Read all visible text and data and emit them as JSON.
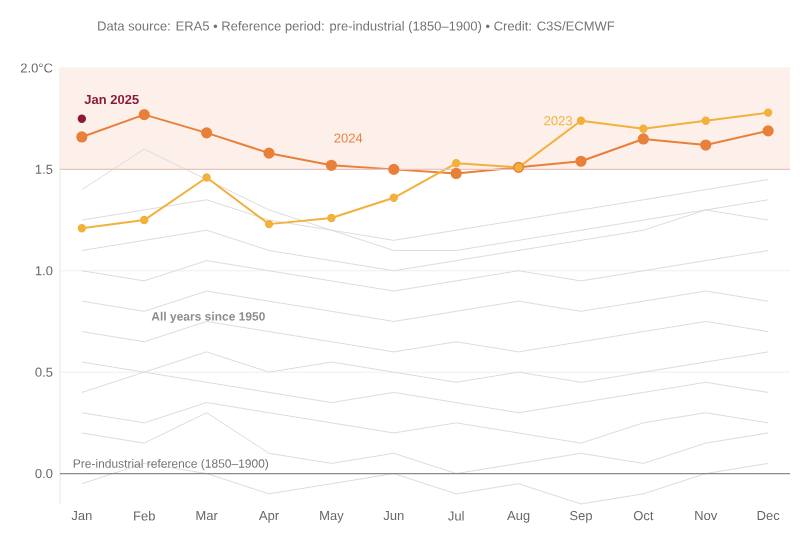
{
  "chart_data": {
    "type": "line",
    "subtitle": "Data source: ERA5 • Reference period: pre-industrial (1850–1900) • Credit: C3S/ECMWF",
    "categories": [
      "Jan",
      "Feb",
      "Mar",
      "Apr",
      "May",
      "Jun",
      "Jul",
      "Aug",
      "Sep",
      "Oct",
      "Nov",
      "Dec"
    ],
    "ylim": [
      -0.15,
      2.0
    ],
    "yticks": [
      {
        "value": 0,
        "label": "0.0"
      },
      {
        "value": 0.5,
        "label": "0.5"
      },
      {
        "value": 1,
        "label": "1.0"
      },
      {
        "value": 1.5,
        "label": "1.5"
      },
      {
        "value": 2,
        "label": "2.0°C"
      }
    ],
    "grid": "y",
    "series": [
      {
        "color": "#dcdcdc",
        "marker": "none",
        "values": [
          -0.05,
          0.05,
          0.0,
          -0.1,
          -0.05,
          0.0,
          -0.1,
          -0.05,
          -0.15,
          -0.1,
          0.0,
          0.05
        ]
      },
      {
        "color": "#dcdcdc",
        "marker": "none",
        "values": [
          0.2,
          0.15,
          0.3,
          0.1,
          0.05,
          0.1,
          0.0,
          0.05,
          0.1,
          0.05,
          0.15,
          0.2
        ]
      },
      {
        "color": "#dcdcdc",
        "marker": "none",
        "values": [
          0.3,
          0.25,
          0.35,
          0.3,
          0.25,
          0.2,
          0.25,
          0.2,
          0.15,
          0.25,
          0.3,
          0.25
        ]
      },
      {
        "color": "#dcdcdc",
        "marker": "none",
        "values": [
          0.4,
          0.5,
          0.45,
          0.4,
          0.35,
          0.4,
          0.35,
          0.3,
          0.35,
          0.4,
          0.45,
          0.4
        ]
      },
      {
        "color": "#dcdcdc",
        "marker": "none",
        "values": [
          0.55,
          0.5,
          0.6,
          0.5,
          0.55,
          0.5,
          0.45,
          0.5,
          0.45,
          0.5,
          0.55,
          0.6
        ]
      },
      {
        "color": "#dcdcdc",
        "marker": "none",
        "values": [
          0.7,
          0.65,
          0.75,
          0.7,
          0.65,
          0.6,
          0.65,
          0.6,
          0.65,
          0.7,
          0.75,
          0.7
        ]
      },
      {
        "color": "#dcdcdc",
        "marker": "none",
        "values": [
          0.85,
          0.8,
          0.9,
          0.85,
          0.8,
          0.75,
          0.8,
          0.85,
          0.8,
          0.85,
          0.9,
          0.85
        ]
      },
      {
        "color": "#dcdcdc",
        "marker": "none",
        "values": [
          1.0,
          0.95,
          1.05,
          1.0,
          0.95,
          0.9,
          0.95,
          1.0,
          0.95,
          1.0,
          1.05,
          1.1
        ]
      },
      {
        "color": "#dcdcdc",
        "marker": "none",
        "values": [
          1.1,
          1.15,
          1.2,
          1.1,
          1.05,
          1.0,
          1.05,
          1.1,
          1.15,
          1.2,
          1.3,
          1.25
        ]
      },
      {
        "color": "#dcdcdc",
        "marker": "none",
        "values": [
          1.25,
          1.3,
          1.35,
          1.25,
          1.2,
          1.15,
          1.2,
          1.25,
          1.3,
          1.35,
          1.4,
          1.45
        ]
      },
      {
        "color": "#dcdcdc",
        "marker": "none",
        "values": [
          1.4,
          1.6,
          1.45,
          1.3,
          1.2,
          1.1,
          1.1,
          1.15,
          1.2,
          1.25,
          1.3,
          1.35
        ]
      },
      {
        "name": "2024",
        "color": "#e8803a",
        "marker": "circle",
        "values": [
          1.66,
          1.77,
          1.68,
          1.58,
          1.52,
          1.5,
          1.48,
          1.51,
          1.54,
          1.65,
          1.62,
          1.69
        ]
      },
      {
        "name": "2023",
        "color": "#f2b13c",
        "marker": "circle",
        "values": [
          1.21,
          1.25,
          1.46,
          1.23,
          1.26,
          1.36,
          1.53,
          1.51,
          1.74,
          1.7,
          1.74,
          1.78
        ]
      },
      {
        "name": "Jan 2025",
        "color": "#8b1a35",
        "marker": "circle",
        "values": [
          1.75,
          null,
          null,
          null,
          null,
          null,
          null,
          null,
          null,
          null,
          null,
          null
        ]
      }
    ],
    "bands": [
      {
        "axis": "y",
        "from": 1.5,
        "to": 2.0,
        "color": "#fdefea"
      }
    ],
    "ref_lines": [
      {
        "axis": "y",
        "value": 1.5,
        "color": "#ecc3bd"
      },
      {
        "axis": "y",
        "value": 0,
        "label": "Pre-industrial reference (1850–1900)",
        "color": "#8a8a8a"
      }
    ],
    "annotations": [
      "All years since 1950"
    ]
  }
}
